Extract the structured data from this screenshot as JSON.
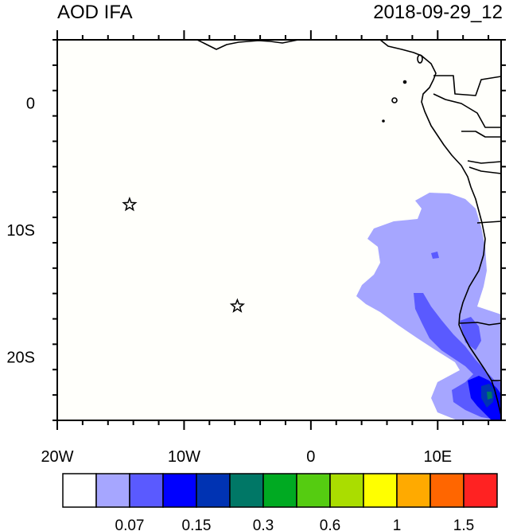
{
  "header": {
    "title": "AOD IFA",
    "datetime": "2018-09-29_12"
  },
  "map": {
    "lon_range": [
      -20,
      15
    ],
    "lat_range": [
      -25,
      5
    ],
    "lon_ticks": [
      {
        "value": -20,
        "label": "20W"
      },
      {
        "value": -10,
        "label": "10W"
      },
      {
        "value": 0,
        "label": "0"
      },
      {
        "value": 10,
        "label": "10E"
      }
    ],
    "lat_ticks": [
      {
        "value": 0,
        "label": "0"
      },
      {
        "value": -10,
        "label": "10S"
      },
      {
        "value": -20,
        "label": "20S"
      }
    ],
    "markers": [
      {
        "type": "star",
        "lon": -14.3,
        "lat": -8.0
      },
      {
        "type": "star",
        "lon": -5.8,
        "lat": -16.0
      }
    ],
    "ocean_color": "#fffffb"
  },
  "colorbar": {
    "colors": [
      "#ffffff",
      "#a6a6ff",
      "#5a5aff",
      "#0000ff",
      "#0033b3",
      "#007766",
      "#00aa22",
      "#55cc11",
      "#aadd00",
      "#ffff00",
      "#ffaa00",
      "#ff6600",
      "#ff2222"
    ],
    "labels": [
      "0.07",
      "0.15",
      "0.3",
      "0.6",
      "1",
      "1.5"
    ]
  }
}
